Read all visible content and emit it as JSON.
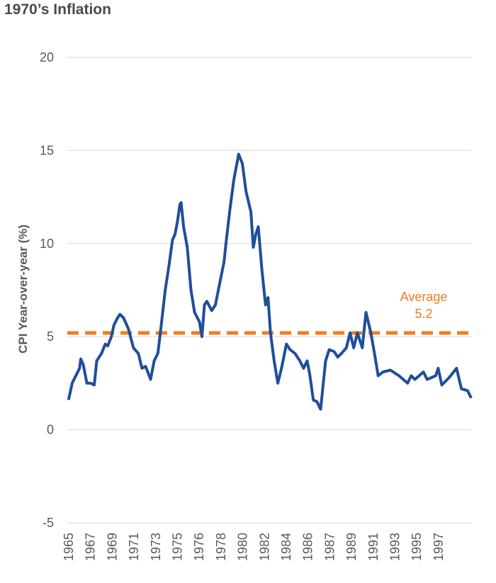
{
  "chart_data": {
    "type": "line",
    "title": "1970’s Inflation",
    "xlabel": "",
    "ylabel": "CPI Year-over-year (%)",
    "ylim": [
      -5,
      20
    ],
    "xlim": [
      1965,
      1998
    ],
    "yticks": [
      20,
      15,
      10,
      5,
      0,
      -5
    ],
    "xtick_labels": [
      "1965",
      "1967",
      "1969",
      "1971",
      "1973",
      "1975",
      "1976",
      "1978",
      "1980",
      "1982",
      "1984",
      "1986",
      "1987",
      "1989",
      "1991",
      "1993",
      "1995",
      "1997"
    ],
    "grid": "horizontal",
    "colors": {
      "series": "#1f4e9a",
      "average": "#f47b20",
      "grid": "#e3e3e3",
      "text": "#595959"
    },
    "series": [
      {
        "x": [
          1965.1,
          1965.4,
          1966.0,
          1966.1,
          1966.3,
          1966.6,
          1966.9,
          1967.2,
          1967.4,
          1967.8,
          1968.1,
          1968.3,
          1968.6,
          1968.8,
          1969.1,
          1969.3,
          1969.6,
          1970.0,
          1970.4,
          1970.8,
          1971.1,
          1971.4,
          1971.8,
          1972.1,
          1972.4,
          1972.6,
          1973.0,
          1973.3,
          1973.6,
          1973.8,
          1974.0,
          1974.2,
          1974.3,
          1974.5,
          1974.8,
          1975.1,
          1975.4,
          1975.8,
          1976.0,
          1976.2,
          1976.4,
          1976.8,
          1977.1,
          1977.4,
          1977.8,
          1978.0,
          1978.3,
          1978.6,
          1979.0,
          1979.3,
          1979.6,
          1980.0,
          1980.2,
          1980.4,
          1980.6,
          1980.9,
          1981.2,
          1981.4,
          1981.6,
          1981.9,
          1982.2,
          1982.5,
          1982.9,
          1983.2,
          1983.6,
          1984.0,
          1984.3,
          1984.6,
          1984.8,
          1985.1,
          1985.4,
          1985.7,
          1986.1,
          1986.4,
          1986.8,
          1987.1,
          1987.4,
          1987.8,
          1988.1,
          1988.4,
          1988.7,
          1989.1,
          1989.4,
          1989.8,
          1990.1,
          1990.4,
          1990.8,
          1991.4,
          1992.1,
          1992.8,
          1993.1,
          1993.4,
          1994.1,
          1994.4,
          1995.1,
          1995.3,
          1995.6,
          1996.2,
          1996.8,
          1997.2,
          1997.7,
          1998.0
        ],
        "y": [
          1.6,
          2.5,
          3.3,
          3.8,
          3.5,
          2.5,
          2.5,
          2.4,
          3.7,
          4.1,
          4.6,
          4.5,
          5.0,
          5.6,
          6.0,
          6.2,
          6.0,
          5.4,
          4.4,
          4.1,
          3.3,
          3.4,
          2.7,
          3.7,
          4.1,
          5.2,
          7.5,
          8.8,
          10.2,
          10.5,
          11.2,
          12.1,
          12.2,
          10.9,
          9.8,
          7.5,
          6.3,
          5.8,
          5.0,
          6.7,
          6.9,
          6.4,
          6.7,
          7.7,
          9.0,
          10.2,
          11.9,
          13.4,
          14.8,
          14.3,
          12.8,
          11.7,
          9.8,
          10.5,
          10.9,
          8.6,
          6.7,
          7.1,
          5.2,
          3.7,
          2.5,
          3.3,
          4.6,
          4.3,
          4.1,
          3.7,
          3.3,
          3.7,
          3.0,
          1.6,
          1.5,
          1.1,
          3.7,
          4.3,
          4.2,
          3.9,
          4.1,
          4.4,
          5.2,
          4.4,
          5.2,
          4.4,
          6.3,
          5.2,
          4.1,
          2.9,
          3.1,
          3.2,
          2.9,
          2.5,
          2.9,
          2.7,
          3.1,
          2.7,
          2.9,
          3.3,
          2.4,
          2.8,
          3.3,
          2.2,
          2.1,
          1.7
        ]
      }
    ],
    "annotations": [
      {
        "label": "Average",
        "value": "5.2",
        "y": 5.2,
        "style": "dashed"
      }
    ]
  }
}
